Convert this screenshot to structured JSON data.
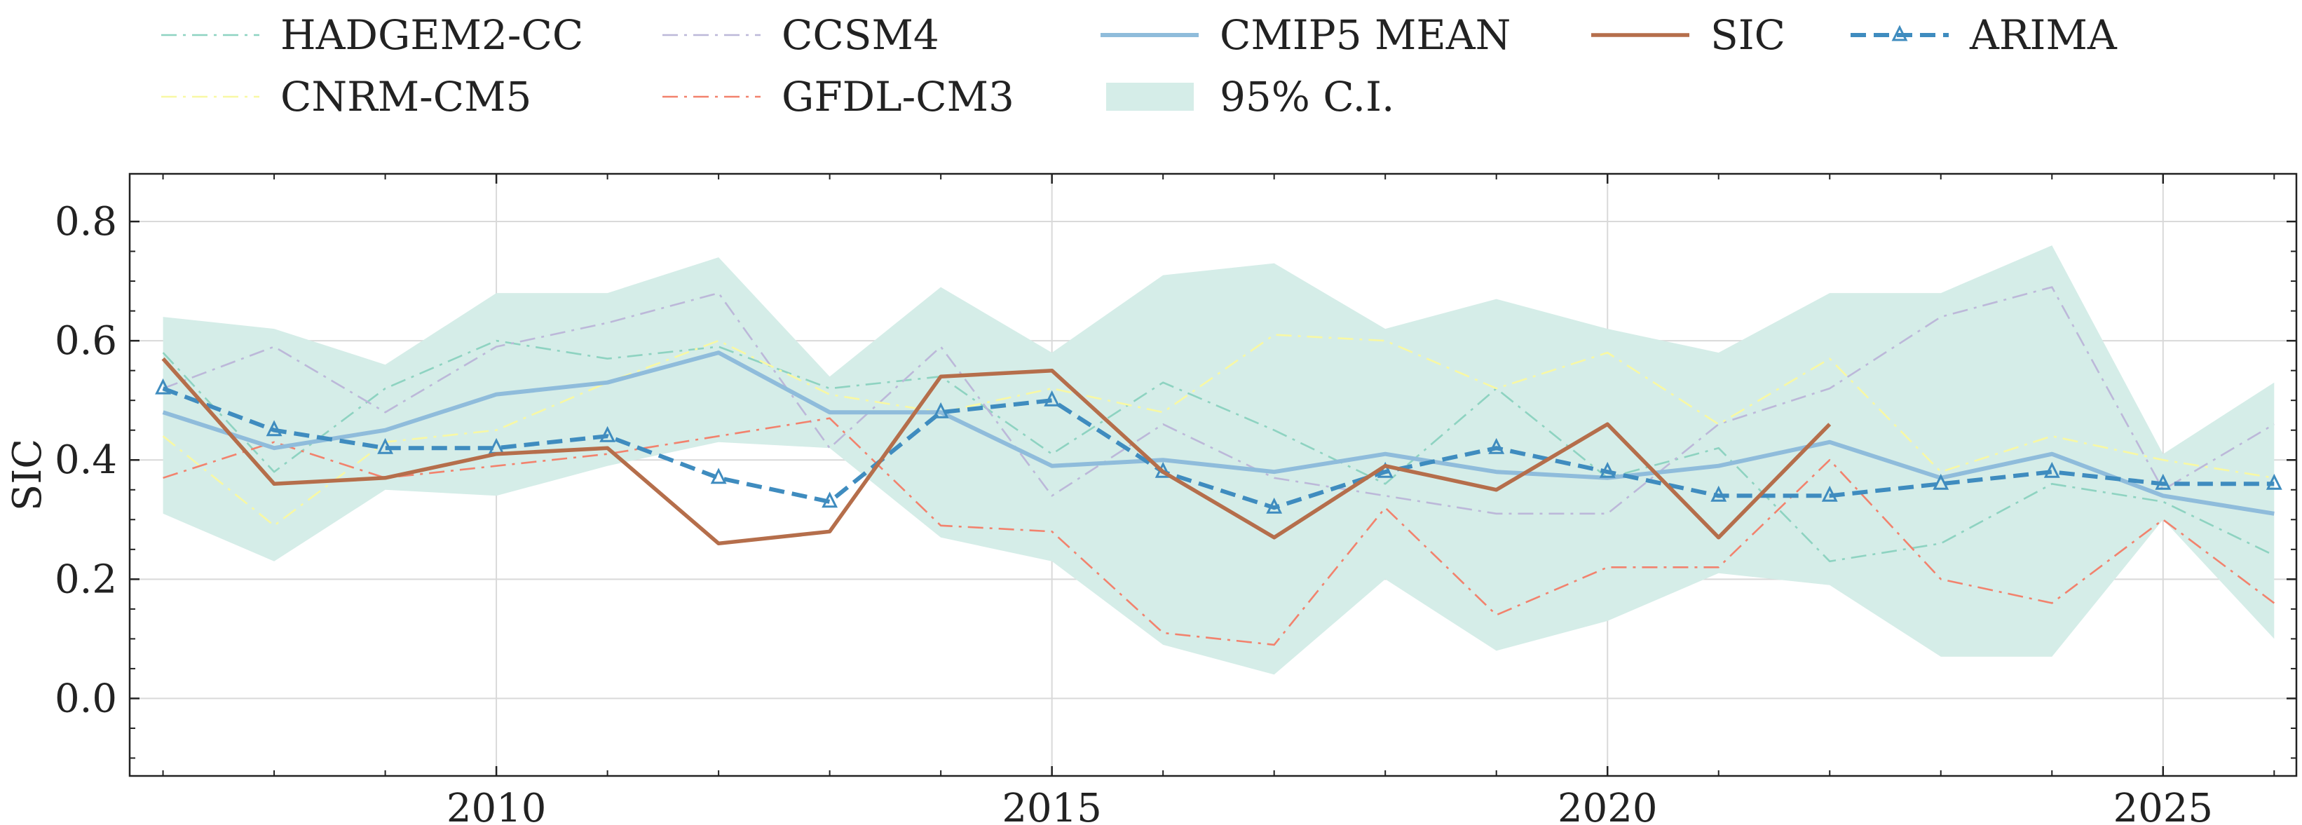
{
  "chart_data": {
    "type": "line",
    "title": "",
    "xlabel": "",
    "ylabel": "SIC",
    "xlim": [
      2006.7,
      2026.2
    ],
    "ylim": [
      -0.13,
      0.88
    ],
    "xticks": [
      2010,
      2015,
      2020,
      2025
    ],
    "xtick_labels": [
      "2010",
      "2015",
      "2020",
      "2025"
    ],
    "yticks": [
      0.0,
      0.2,
      0.4,
      0.6,
      0.8
    ],
    "ytick_labels": [
      "0.0",
      "0.2",
      "0.4",
      "0.6",
      "0.8"
    ],
    "grid": true,
    "legend_position": "top",
    "x": [
      2007,
      2008,
      2009,
      2010,
      2011,
      2012,
      2013,
      2014,
      2015,
      2016,
      2017,
      2018,
      2019,
      2020,
      2021,
      2022,
      2023,
      2024,
      2025,
      2026
    ],
    "ci": {
      "name": "95% C.I.",
      "color": "#d5ede8",
      "upper": [
        0.64,
        0.62,
        0.56,
        0.68,
        0.68,
        0.74,
        0.54,
        0.69,
        0.58,
        0.71,
        0.73,
        0.62,
        0.67,
        0.62,
        0.58,
        0.68,
        0.68,
        0.76,
        0.41,
        0.53
      ],
      "lower": [
        0.31,
        0.23,
        0.35,
        0.34,
        0.39,
        0.43,
        0.42,
        0.27,
        0.23,
        0.09,
        0.04,
        0.2,
        0.08,
        0.13,
        0.21,
        0.19,
        0.07,
        0.07,
        0.3,
        0.1
      ]
    },
    "series": [
      {
        "name": "HADGEM2-CC",
        "color": "#8ed3c1",
        "style": "dashdot",
        "width": 2.6,
        "values": [
          0.58,
          0.38,
          0.52,
          0.6,
          0.57,
          0.59,
          0.52,
          0.54,
          0.41,
          0.53,
          0.45,
          0.36,
          0.52,
          0.37,
          0.42,
          0.23,
          0.26,
          0.36,
          0.33,
          0.24
        ]
      },
      {
        "name": "CCSM4",
        "color": "#bcb8d9",
        "style": "dashdot",
        "width": 2.6,
        "values": [
          0.52,
          0.59,
          0.48,
          0.59,
          0.63,
          0.68,
          0.42,
          0.59,
          0.34,
          0.46,
          0.37,
          0.34,
          0.31,
          0.31,
          0.46,
          0.52,
          0.64,
          0.69,
          0.35,
          0.46
        ]
      },
      {
        "name": "CMIP5 MEAN",
        "color": "#8fbcdb",
        "style": "solid",
        "width": 6,
        "values": [
          0.48,
          0.42,
          0.45,
          0.51,
          0.53,
          0.58,
          0.48,
          0.48,
          0.39,
          0.4,
          0.38,
          0.41,
          0.38,
          0.37,
          0.39,
          0.43,
          0.37,
          0.41,
          0.34,
          0.31
        ]
      },
      {
        "name": "SIC",
        "color": "#b56e4b",
        "style": "solid",
        "width": 5.5,
        "values": [
          0.57,
          0.36,
          0.37,
          0.41,
          0.42,
          0.26,
          0.28,
          0.54,
          0.55,
          0.38,
          0.27,
          0.39,
          0.35,
          0.46,
          0.27,
          0.46,
          null,
          null,
          null,
          null
        ]
      },
      {
        "name": "ARIMA",
        "color": "#3f8cbf",
        "style": "dashed",
        "width": 6,
        "marker": "tri",
        "values": [
          0.52,
          0.45,
          0.42,
          0.42,
          0.44,
          0.37,
          0.33,
          0.48,
          0.5,
          0.38,
          0.32,
          0.38,
          0.42,
          0.38,
          0.34,
          0.34,
          0.36,
          0.38,
          0.36,
          0.36
        ]
      },
      {
        "name": "CNRM-CM5",
        "color": "#f8f8a4",
        "style": "dashdot",
        "width": 2.6,
        "values": [
          0.44,
          0.29,
          0.43,
          0.45,
          0.53,
          0.6,
          0.51,
          0.48,
          0.52,
          0.48,
          0.61,
          0.6,
          0.52,
          0.58,
          0.46,
          0.57,
          0.38,
          0.44,
          0.4,
          0.37
        ]
      },
      {
        "name": "GFDL-CM3",
        "color": "#f2826d",
        "style": "dashdot",
        "width": 2.6,
        "values": [
          0.37,
          0.43,
          0.37,
          0.39,
          0.41,
          0.44,
          0.47,
          0.29,
          0.28,
          0.11,
          0.09,
          0.32,
          0.14,
          0.22,
          0.22,
          0.4,
          0.2,
          0.16,
          0.3,
          0.16
        ]
      }
    ],
    "legend": [
      {
        "label": "HADGEM2-CC",
        "kind": "line",
        "series": "HADGEM2-CC"
      },
      {
        "label": "CCSM4",
        "kind": "line",
        "series": "CCSM4"
      },
      {
        "label": "CMIP5 MEAN",
        "kind": "line",
        "series": "CMIP5 MEAN"
      },
      {
        "label": "SIC",
        "kind": "line",
        "series": "SIC"
      },
      {
        "label": "ARIMA",
        "kind": "line",
        "series": "ARIMA"
      },
      {
        "label": "CNRM-CM5",
        "kind": "line",
        "series": "CNRM-CM5"
      },
      {
        "label": "GFDL-CM3",
        "kind": "line",
        "series": "GFDL-CM3"
      },
      {
        "label": "95% C.I.",
        "kind": "patch",
        "series": "95% C.I."
      }
    ]
  }
}
